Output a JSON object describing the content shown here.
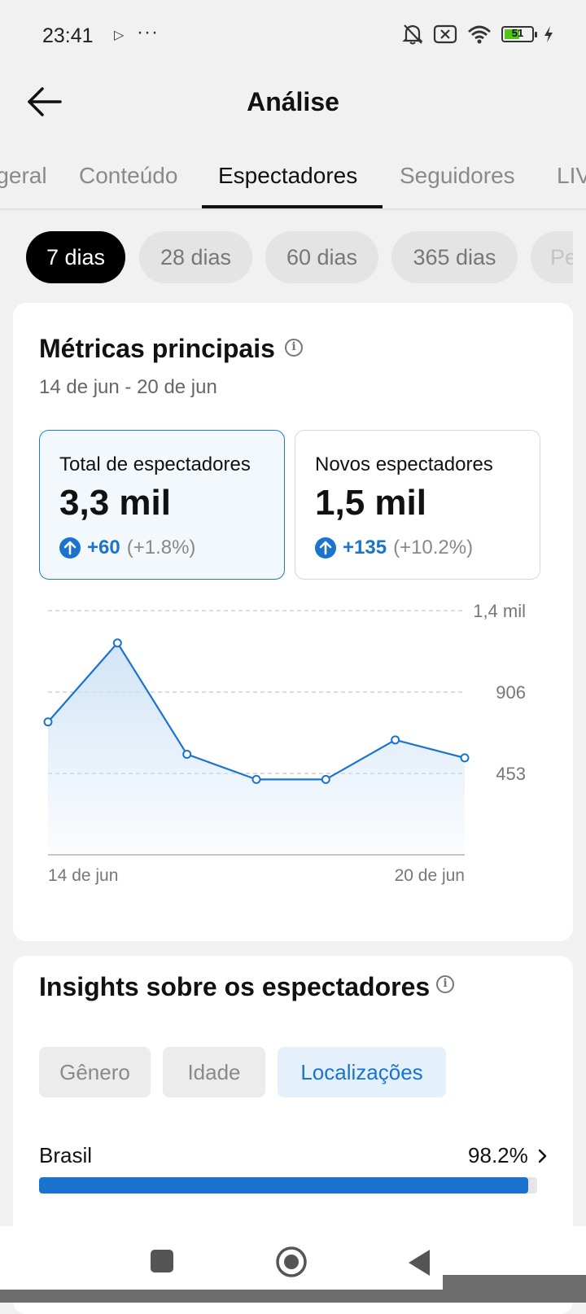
{
  "status_bar": {
    "time": "23:41",
    "battery_level": "51",
    "icons": [
      "media-play-icon",
      "more-dots-icon",
      "bell-muted-icon",
      "no-sim-icon",
      "wifi-icon",
      "battery-icon",
      "charging-bolt-icon"
    ]
  },
  "header": {
    "title": "Análise"
  },
  "tabs": [
    {
      "label": "Visão geral",
      "active": false
    },
    {
      "label": "Conteúdo",
      "active": false
    },
    {
      "label": "Espectadores",
      "active": true
    },
    {
      "label": "Seguidores",
      "active": false
    },
    {
      "label": "LIVE",
      "active": false
    }
  ],
  "range_chips": [
    {
      "label": "7 dias",
      "active": true
    },
    {
      "label": "28 dias",
      "active": false
    },
    {
      "label": "60 dias",
      "active": false
    },
    {
      "label": "365 dias",
      "active": false
    },
    {
      "label": "Personalizado",
      "active": false
    }
  ],
  "metrics": {
    "title": "Métricas principais",
    "date_range": "14 de jun - 20 de jun",
    "boxes": [
      {
        "label": "Total de espectadores",
        "value": "3,3 mil",
        "delta": "+60",
        "pct": "(+1.8%)",
        "selected": true
      },
      {
        "label": "Novos espectadores",
        "value": "1,5 mil",
        "delta": "+135",
        "pct": "(+10.2%)",
        "selected": false
      }
    ]
  },
  "chart_data": {
    "type": "area",
    "x": [
      "14 de jun",
      "15 de jun",
      "16 de jun",
      "17 de jun",
      "18 de jun",
      "19 de jun",
      "20 de jun"
    ],
    "values": [
      740,
      1180,
      560,
      420,
      420,
      640,
      540
    ],
    "y_ticks": [
      453,
      906,
      1360
    ],
    "y_tick_labels": [
      "453",
      "906",
      "1,4 mil"
    ],
    "x_tick_labels": [
      "14 de jun",
      "20 de jun"
    ],
    "ylim": [
      0,
      1360
    ],
    "grid": true,
    "line_color": "#1a73cf",
    "fill_color": "#cfe3f6"
  },
  "insights": {
    "title": "Insights sobre os espectadores",
    "segments": [
      {
        "label": "Gênero",
        "active": false
      },
      {
        "label": "Idade",
        "active": false
      },
      {
        "label": "Localizações",
        "active": true
      }
    ],
    "locations": [
      {
        "name": "Brasil",
        "pct_label": "98.2%",
        "fraction": 0.982
      }
    ]
  },
  "colors": {
    "accent": "#1a73cf",
    "chip_active_bg": "#000000",
    "page_bg": "#f1f1f2"
  }
}
